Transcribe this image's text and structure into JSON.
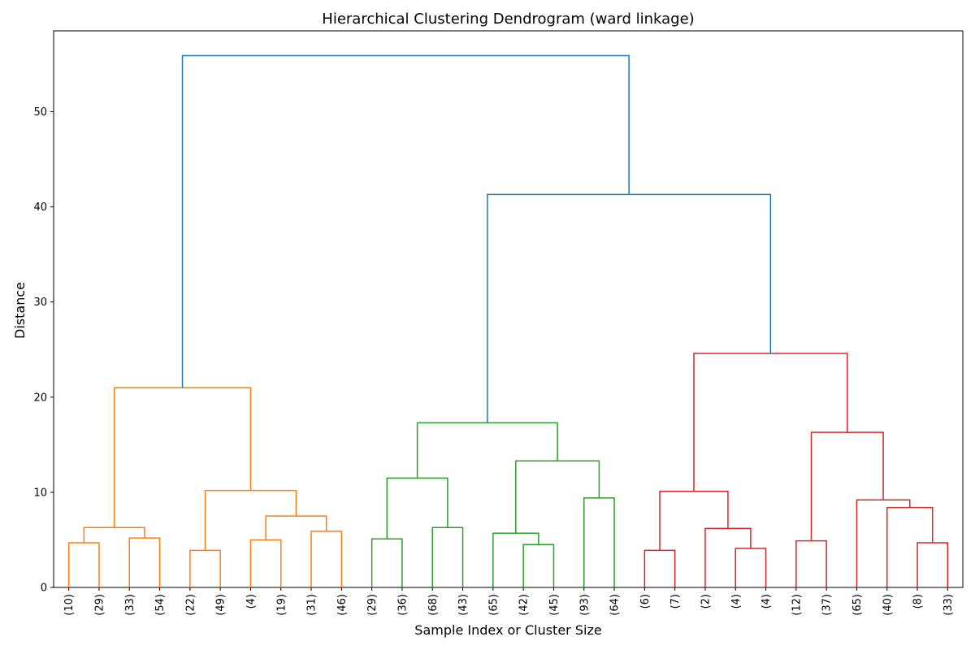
{
  "chart_data": {
    "type": "dendrogram",
    "title": "Hierarchical Clustering Dendrogram (ward linkage)",
    "xlabel": "Sample Index or Cluster Size",
    "ylabel": "Distance",
    "ylim": [
      0,
      58.5
    ],
    "yticks": [
      0,
      10,
      20,
      30,
      40,
      50
    ],
    "colors": {
      "orange": "#ff7f0e",
      "green": "#2ca02c",
      "red": "#d62728",
      "blue": "#1f77b4"
    },
    "leaves": [
      "(10)",
      "(29)",
      "(33)",
      "(54)",
      "(22)",
      "(49)",
      "(4)",
      "(19)",
      "(31)",
      "(46)",
      "(29)",
      "(36)",
      "(68)",
      "(43)",
      "(65)",
      "(42)",
      "(45)",
      "(93)",
      "(64)",
      "(6)",
      "(7)",
      "(2)",
      "(4)",
      "(4)",
      "(12)",
      "(37)",
      "(65)",
      "(40)",
      "(8)",
      "(33)"
    ],
    "merges": [
      {
        "left": 0,
        "right": 1,
        "height": 4.7,
        "color": "orange"
      },
      {
        "left": 2,
        "right": 3,
        "height": 5.2,
        "color": "orange"
      },
      {
        "left": 30,
        "right": 31,
        "height": 6.3,
        "color": "orange"
      },
      {
        "left": 4,
        "right": 5,
        "height": 3.9,
        "color": "orange"
      },
      {
        "left": 6,
        "right": 7,
        "height": 5.0,
        "color": "orange"
      },
      {
        "left": 8,
        "right": 9,
        "height": 5.9,
        "color": "orange"
      },
      {
        "left": 34,
        "right": 35,
        "height": 7.5,
        "color": "orange"
      },
      {
        "left": 33,
        "right": 36,
        "height": 10.2,
        "color": "orange"
      },
      {
        "left": 32,
        "right": 37,
        "height": 21.0,
        "color": "orange"
      },
      {
        "left": 10,
        "right": 11,
        "height": 5.1,
        "color": "green"
      },
      {
        "left": 12,
        "right": 13,
        "height": 6.3,
        "color": "green"
      },
      {
        "left": 39,
        "right": 40,
        "height": 11.5,
        "color": "green"
      },
      {
        "left": 15,
        "right": 16,
        "height": 4.5,
        "color": "green"
      },
      {
        "left": 14,
        "right": 42,
        "height": 5.7,
        "color": "green"
      },
      {
        "left": 17,
        "right": 18,
        "height": 9.4,
        "color": "green"
      },
      {
        "left": 43,
        "right": 44,
        "height": 13.3,
        "color": "green"
      },
      {
        "left": 41,
        "right": 45,
        "height": 17.3,
        "color": "green"
      },
      {
        "left": 19,
        "right": 20,
        "height": 3.9,
        "color": "red"
      },
      {
        "left": 22,
        "right": 23,
        "height": 4.1,
        "color": "red"
      },
      {
        "left": 21,
        "right": 48,
        "height": 6.2,
        "color": "red"
      },
      {
        "left": 47,
        "right": 49,
        "height": 10.1,
        "color": "red"
      },
      {
        "left": 24,
        "right": 25,
        "height": 4.9,
        "color": "red"
      },
      {
        "left": 28,
        "right": 29,
        "height": 4.7,
        "color": "red"
      },
      {
        "left": 27,
        "right": 52,
        "height": 8.4,
        "color": "red"
      },
      {
        "left": 26,
        "right": 53,
        "height": 9.2,
        "color": "red"
      },
      {
        "left": 51,
        "right": 54,
        "height": 16.3,
        "color": "red"
      },
      {
        "left": 50,
        "right": 55,
        "height": 24.6,
        "color": "red"
      },
      {
        "left": 46,
        "right": 56,
        "height": 41.3,
        "color": "blue"
      },
      {
        "left": 38,
        "right": 57,
        "height": 55.9,
        "color": "blue"
      }
    ]
  }
}
